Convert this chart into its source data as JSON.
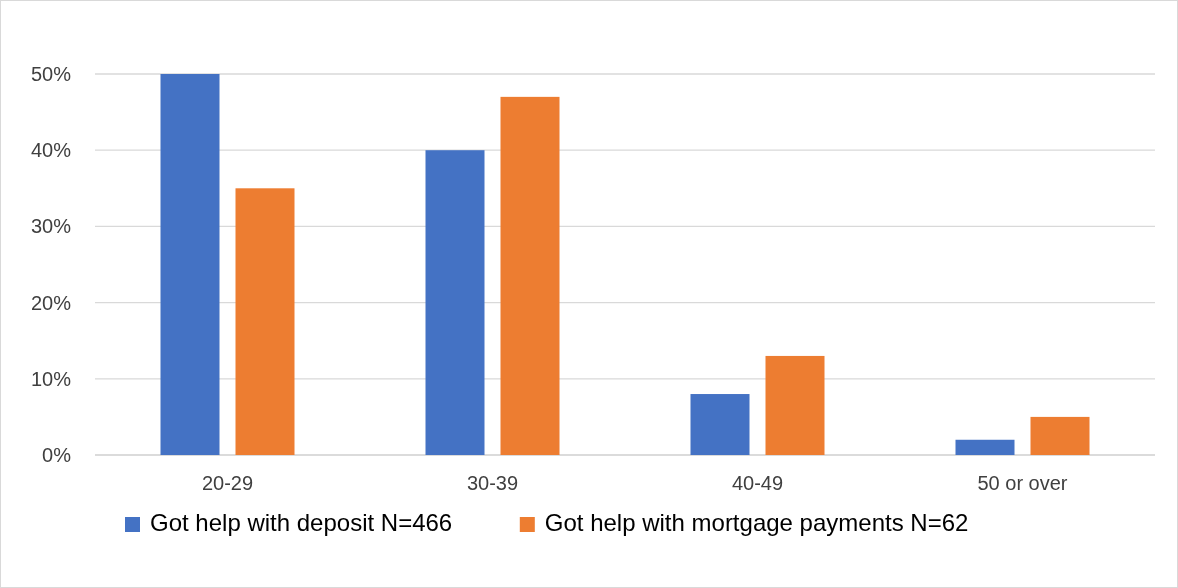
{
  "chart_data": {
    "type": "bar",
    "categories": [
      "20-29",
      "30-39",
      "40-49",
      "50 or over"
    ],
    "series": [
      {
        "name": "Got help with deposit N=466",
        "color": "#4472c4",
        "values": [
          50,
          40,
          8,
          2
        ]
      },
      {
        "name": "Got help with mortgage payments N=62",
        "color": "#ed7d31",
        "values": [
          35,
          47,
          13,
          5
        ]
      }
    ],
    "ylim": [
      0,
      50
    ],
    "yticks": [
      {
        "value": 0,
        "label": "0%"
      },
      {
        "value": 10,
        "label": "10%"
      },
      {
        "value": 20,
        "label": "20%"
      },
      {
        "value": 30,
        "label": "30%"
      },
      {
        "value": 40,
        "label": "40%"
      },
      {
        "value": 50,
        "label": "50%"
      }
    ],
    "grid": "y",
    "legend": "bottom"
  }
}
